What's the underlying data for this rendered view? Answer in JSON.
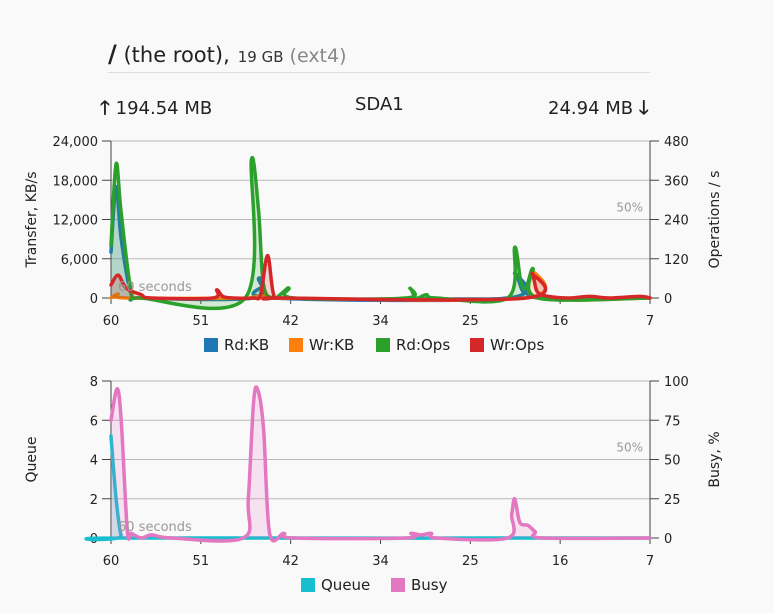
{
  "header": {
    "slash": "/",
    "name": "(the root),",
    "size": "19 GB",
    "fs": "(ext4)"
  },
  "stats": {
    "up_arrow": "🡑",
    "read_total": "194.54 MB",
    "device": "SDA1",
    "write_total": "24.94 MB",
    "down_arrow": "🡓"
  },
  "chart_data": [
    {
      "type": "area",
      "ylabel": "Transfer, KB/s",
      "y2label": "Operations / s",
      "x_ticks": [
        "60",
        "51",
        "42",
        "34",
        "25",
        "16",
        "7"
      ],
      "y_ticks": [
        "0",
        "6,000",
        "12,000",
        "18,000",
        "24,000"
      ],
      "y2_ticks": [
        "0",
        "120",
        "240",
        "360",
        "480"
      ],
      "ylim": [
        0,
        24000
      ],
      "y2lim": [
        0,
        480
      ],
      "x_range": [
        60,
        7
      ],
      "annotations": {
        "mark_50": "50%",
        "window": "60 seconds"
      },
      "grid": true,
      "legend": "bottom",
      "series": [
        {
          "name": "Rd:KB",
          "color": "#1f77b4",
          "axis": "left",
          "points": [
            [
              60,
              7000
            ],
            [
              59.5,
              17000
            ],
            [
              59,
              9000
            ],
            [
              58,
              500
            ],
            [
              57,
              0
            ],
            [
              46,
              0
            ],
            [
              45.5,
              3000
            ],
            [
              45,
              2000
            ],
            [
              44,
              0
            ],
            [
              21,
              0
            ],
            [
              20.3,
              3800
            ],
            [
              19.5,
              1000
            ],
            [
              19,
              2200
            ],
            [
              18,
              0
            ],
            [
              7,
              0
            ]
          ]
        },
        {
          "name": "Wr:KB",
          "color": "#ff7f0e",
          "axis": "left",
          "points": [
            [
              60,
              0
            ],
            [
              59.3,
              600
            ],
            [
              58.5,
              0
            ],
            [
              45.8,
              0
            ],
            [
              45,
              300
            ],
            [
              44,
              0
            ],
            [
              19.3,
              0
            ],
            [
              18.6,
              4200
            ],
            [
              18,
              0
            ],
            [
              7,
              0
            ]
          ]
        },
        {
          "name": "Rd:Ops",
          "color": "#2ca02c",
          "axis": "right",
          "points": [
            [
              60,
              160
            ],
            [
              59.5,
              410
            ],
            [
              59,
              260
            ],
            [
              58,
              20
            ],
            [
              57,
              0
            ],
            [
              46.8,
              0
            ],
            [
              46.2,
              420
            ],
            [
              45.5,
              270
            ],
            [
              45,
              40
            ],
            [
              44,
              0
            ],
            [
              43,
              20
            ],
            [
              42.5,
              30
            ],
            [
              42,
              0
            ],
            [
              31,
              0
            ],
            [
              30.6,
              30
            ],
            [
              30,
              0
            ],
            [
              29,
              10
            ],
            [
              28,
              0
            ],
            [
              21,
              0
            ],
            [
              20.3,
              155
            ],
            [
              19.7,
              50
            ],
            [
              19.2,
              30
            ],
            [
              18.5,
              90
            ],
            [
              18,
              0
            ],
            [
              7,
              0
            ]
          ]
        },
        {
          "name": "Wr:Ops",
          "color": "#d62728",
          "axis": "right",
          "points": [
            [
              60,
              40
            ],
            [
              59.3,
              70
            ],
            [
              58.5,
              30
            ],
            [
              57,
              10
            ],
            [
              56,
              0
            ],
            [
              50,
              0
            ],
            [
              49.6,
              25
            ],
            [
              49,
              5
            ],
            [
              48,
              0
            ],
            [
              46,
              0
            ],
            [
              45.3,
              10
            ],
            [
              44.6,
              130
            ],
            [
              44,
              10
            ],
            [
              43,
              0
            ],
            [
              19.2,
              0
            ],
            [
              18.6,
              75
            ],
            [
              18.1,
              20
            ],
            [
              17,
              5
            ],
            [
              15,
              0
            ],
            [
              13,
              5
            ],
            [
              11,
              0
            ],
            [
              8,
              5
            ],
            [
              7,
              0
            ]
          ]
        }
      ]
    },
    {
      "type": "area",
      "ylabel": "Queue",
      "y2label": "Busy, %",
      "x_ticks": [
        "60",
        "51",
        "42",
        "34",
        "25",
        "16",
        "7"
      ],
      "y_ticks": [
        "0",
        "2",
        "4",
        "6",
        "8"
      ],
      "y2_ticks": [
        "0",
        "25",
        "50",
        "75",
        "100"
      ],
      "ylim": [
        0,
        8
      ],
      "y2lim": [
        0,
        100
      ],
      "x_range": [
        60,
        7
      ],
      "annotations": {
        "mark_50": "50%",
        "window": "60 seconds"
      },
      "grid": true,
      "legend": "bottom",
      "series": [
        {
          "name": "Queue",
          "color": "#17becf",
          "axis": "left",
          "points": [
            [
              60,
              5.2
            ],
            [
              59.5,
              2
            ],
            [
              59,
              0.1
            ],
            [
              58.5,
              0
            ],
            [
              7,
              0
            ]
          ]
        },
        {
          "name": "Busy",
          "color": "#e377c2",
          "axis": "right",
          "points": [
            [
              60,
              75
            ],
            [
              59.4,
              95
            ],
            [
              59,
              75
            ],
            [
              58.4,
              5
            ],
            [
              58,
              3
            ],
            [
              57,
              0
            ],
            [
              56,
              2
            ],
            [
              54,
              0
            ],
            [
              47,
              0
            ],
            [
              46.5,
              25
            ],
            [
              46,
              85
            ],
            [
              45.6,
              95
            ],
            [
              45,
              70
            ],
            [
              44.4,
              3
            ],
            [
              43,
              3
            ],
            [
              42,
              0
            ],
            [
              31,
              0
            ],
            [
              30.5,
              3
            ],
            [
              29.5,
              2
            ],
            [
              28.5,
              3
            ],
            [
              28,
              0
            ],
            [
              21,
              0
            ],
            [
              20.6,
              15
            ],
            [
              20.3,
              25
            ],
            [
              19.8,
              10
            ],
            [
              19,
              8
            ],
            [
              18.3,
              4
            ],
            [
              17.5,
              0
            ],
            [
              7,
              0
            ]
          ]
        }
      ]
    }
  ]
}
